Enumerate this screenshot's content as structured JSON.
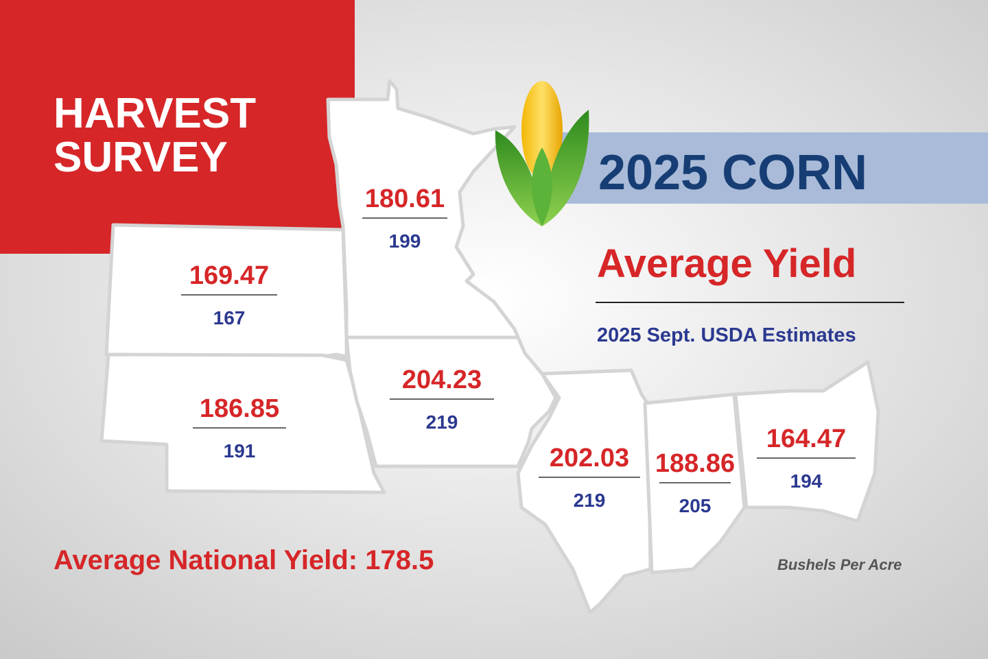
{
  "title": {
    "lines": [
      "HARVEST",
      "SURVEY"
    ]
  },
  "banner": "2025 CORN",
  "heading": "Average Yield",
  "subheading": "2025 Sept. USDA Estimates",
  "states": [
    {
      "survey": 180.61,
      "usda": 199
    },
    {
      "survey": 169.47,
      "usda": 167
    },
    {
      "survey": 186.85,
      "usda": 191
    },
    {
      "survey": 204.23,
      "usda": 219
    },
    {
      "survey": 202.03,
      "usda": 219
    },
    {
      "survey": 188.86,
      "usda": 205
    },
    {
      "survey": 164.47,
      "usda": 194
    }
  ],
  "national": "Average National Yield: 178.5",
  "unit_note": "Bushels Per Acre"
}
